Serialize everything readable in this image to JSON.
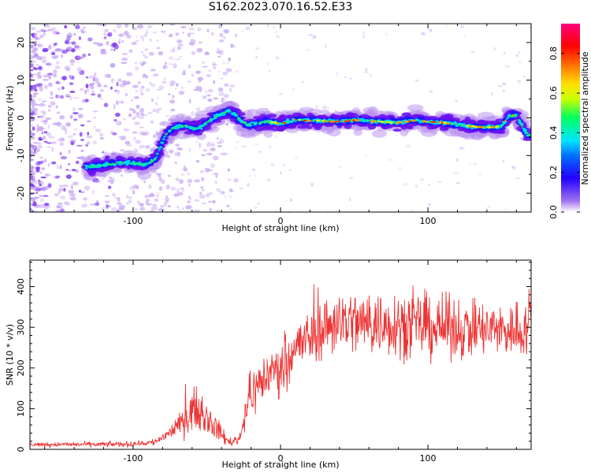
{
  "title": "S162.2023.070.16.52.E33",
  "chart_data": [
    {
      "id": "spectrogram",
      "type": "heatmap",
      "title": "S162.2023.070.16.52.E33",
      "xlabel": "Height of straight line (km)",
      "ylabel": "Frequency (Hz)",
      "xlim": [
        -170,
        170
      ],
      "ylim": [
        -25,
        25
      ],
      "x_ticks": [
        -100,
        0,
        100
      ],
      "y_ticks": [
        -20,
        -10,
        0,
        10,
        20
      ],
      "ridge": {
        "x": [
          -130,
          -120,
          -110,
          -100,
          -92,
          -85,
          -78,
          -72,
          -65,
          -58,
          -52,
          -46,
          -40,
          -35,
          -30,
          -26,
          -22,
          -18,
          -10,
          0,
          10,
          20,
          30,
          40,
          50,
          60,
          70,
          80,
          90,
          100,
          110,
          120,
          130,
          140,
          150,
          155,
          160,
          165,
          168
        ],
        "y": [
          -13,
          -12.5,
          -12,
          -12,
          -12.5,
          -11,
          -4.5,
          -2.5,
          -2,
          -3,
          -2,
          0,
          1,
          2,
          0.5,
          -1,
          -2,
          -1.5,
          -1,
          -1.5,
          -0.5,
          -0.7,
          -0.8,
          -1,
          -0.5,
          -0.8,
          -1,
          -1.2,
          -0.7,
          -1,
          -1.2,
          -1.8,
          -2.3,
          -2.5,
          -2.2,
          0.5,
          0.8,
          -3,
          -4.5
        ]
      },
      "colorbar": {
        "label": "Normalized spectral amplitude",
        "range": [
          0,
          0.95
        ],
        "ticks": [
          0.0,
          0.2,
          0.4,
          0.6,
          0.8
        ],
        "tick_labels": [
          "0.0",
          "0.2",
          "0.4",
          "0.6",
          "0.8"
        ]
      }
    },
    {
      "id": "snr",
      "type": "line",
      "xlabel": "Height of straight line (km)",
      "ylabel": "SNR (10 * v/v)",
      "xlim": [
        -170,
        170
      ],
      "ylim": [
        0,
        465
      ],
      "x_ticks": [
        -100,
        0,
        100
      ],
      "y_ticks": [
        0,
        100,
        200,
        300,
        400
      ],
      "color": "#ee3333",
      "envelope": {
        "x": [
          -170,
          -130,
          -100,
          -85,
          -70,
          -60,
          -50,
          -42,
          -35,
          -28,
          -22,
          -15,
          -8,
          0,
          10,
          20,
          30,
          40,
          60,
          80,
          100,
          120,
          140,
          160,
          170
        ],
        "mean": [
          12,
          12,
          13,
          18,
          55,
          100,
          80,
          45,
          18,
          25,
          120,
          160,
          185,
          205,
          250,
          275,
          300,
          318,
          308,
          312,
          300,
          298,
          292,
          295,
          300
        ],
        "spread": [
          6,
          7,
          8,
          10,
          25,
          55,
          45,
          30,
          12,
          15,
          60,
          70,
          70,
          75,
          75,
          80,
          85,
          95,
          90,
          95,
          90,
          85,
          80,
          80,
          85
        ]
      }
    }
  ]
}
